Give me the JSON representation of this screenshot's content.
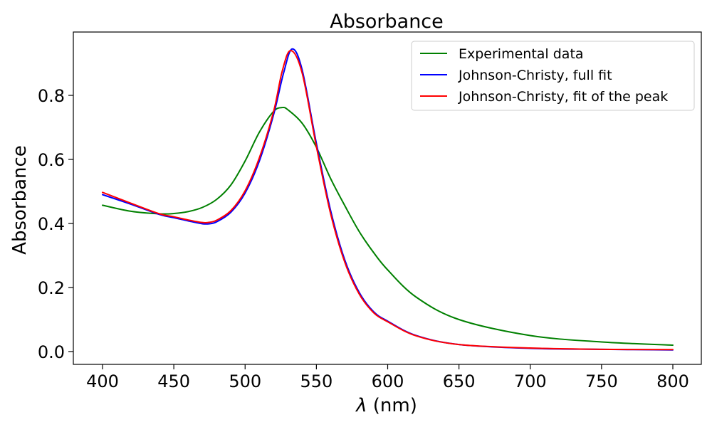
{
  "chart_data": {
    "type": "line",
    "title": "Absorbance",
    "xlabel_symbol": "λ",
    "xlabel_unit": " (nm)",
    "ylabel": "Absorbance",
    "xlim": [
      380,
      1000
    ],
    "ylim": [
      -0.04,
      0.97
    ],
    "xticks": [
      400,
      450,
      500,
      550,
      600,
      650,
      700,
      750,
      800
    ],
    "yticks": [
      0.0,
      0.2,
      0.4,
      0.6,
      0.8
    ],
    "ytick_labels": [
      "0.0",
      "0.2",
      "0.4",
      "0.6",
      "0.8"
    ],
    "grid": false,
    "legend_position": "top-right",
    "series": [
      {
        "name": "Experimental data",
        "color": "#008000",
        "x": [
          400,
          420,
          440,
          450,
          460,
          470,
          480,
          490,
          500,
          510,
          520,
          526,
          530,
          540,
          550,
          560,
          570,
          580,
          590,
          600,
          620,
          650,
          700,
          750,
          800
        ],
        "y": [
          0.457,
          0.438,
          0.43,
          0.431,
          0.437,
          0.45,
          0.475,
          0.52,
          0.595,
          0.685,
          0.75,
          0.762,
          0.755,
          0.713,
          0.638,
          0.54,
          0.455,
          0.375,
          0.31,
          0.255,
          0.17,
          0.1,
          0.05,
          0.03,
          0.02
        ]
      },
      {
        "name": "Johnson-Christy, full fit",
        "color": "#0000ff",
        "x": [
          400,
          420,
          440,
          450,
          460,
          470,
          475,
          480,
          490,
          500,
          510,
          520,
          527,
          533,
          540,
          550,
          560,
          570,
          580,
          590,
          600,
          620,
          650,
          700,
          750,
          800
        ],
        "y": [
          0.49,
          0.46,
          0.428,
          0.418,
          0.408,
          0.399,
          0.399,
          0.405,
          0.435,
          0.495,
          0.595,
          0.74,
          0.87,
          0.945,
          0.88,
          0.65,
          0.44,
          0.285,
          0.185,
          0.125,
          0.095,
          0.05,
          0.022,
          0.01,
          0.007,
          0.005
        ]
      },
      {
        "name": "Johnson-Christy, fit of the peak",
        "color": "#ff0000",
        "x": [
          400,
          420,
          440,
          450,
          460,
          470,
          474,
          480,
          490,
          500,
          510,
          520,
          526,
          532,
          540,
          550,
          560,
          570,
          580,
          590,
          600,
          620,
          650,
          700,
          750,
          800
        ],
        "y": [
          0.497,
          0.463,
          0.43,
          0.421,
          0.411,
          0.403,
          0.403,
          0.41,
          0.44,
          0.502,
          0.605,
          0.75,
          0.875,
          0.94,
          0.87,
          0.64,
          0.43,
          0.278,
          0.18,
          0.122,
          0.093,
          0.049,
          0.022,
          0.011,
          0.007,
          0.006
        ]
      }
    ]
  }
}
